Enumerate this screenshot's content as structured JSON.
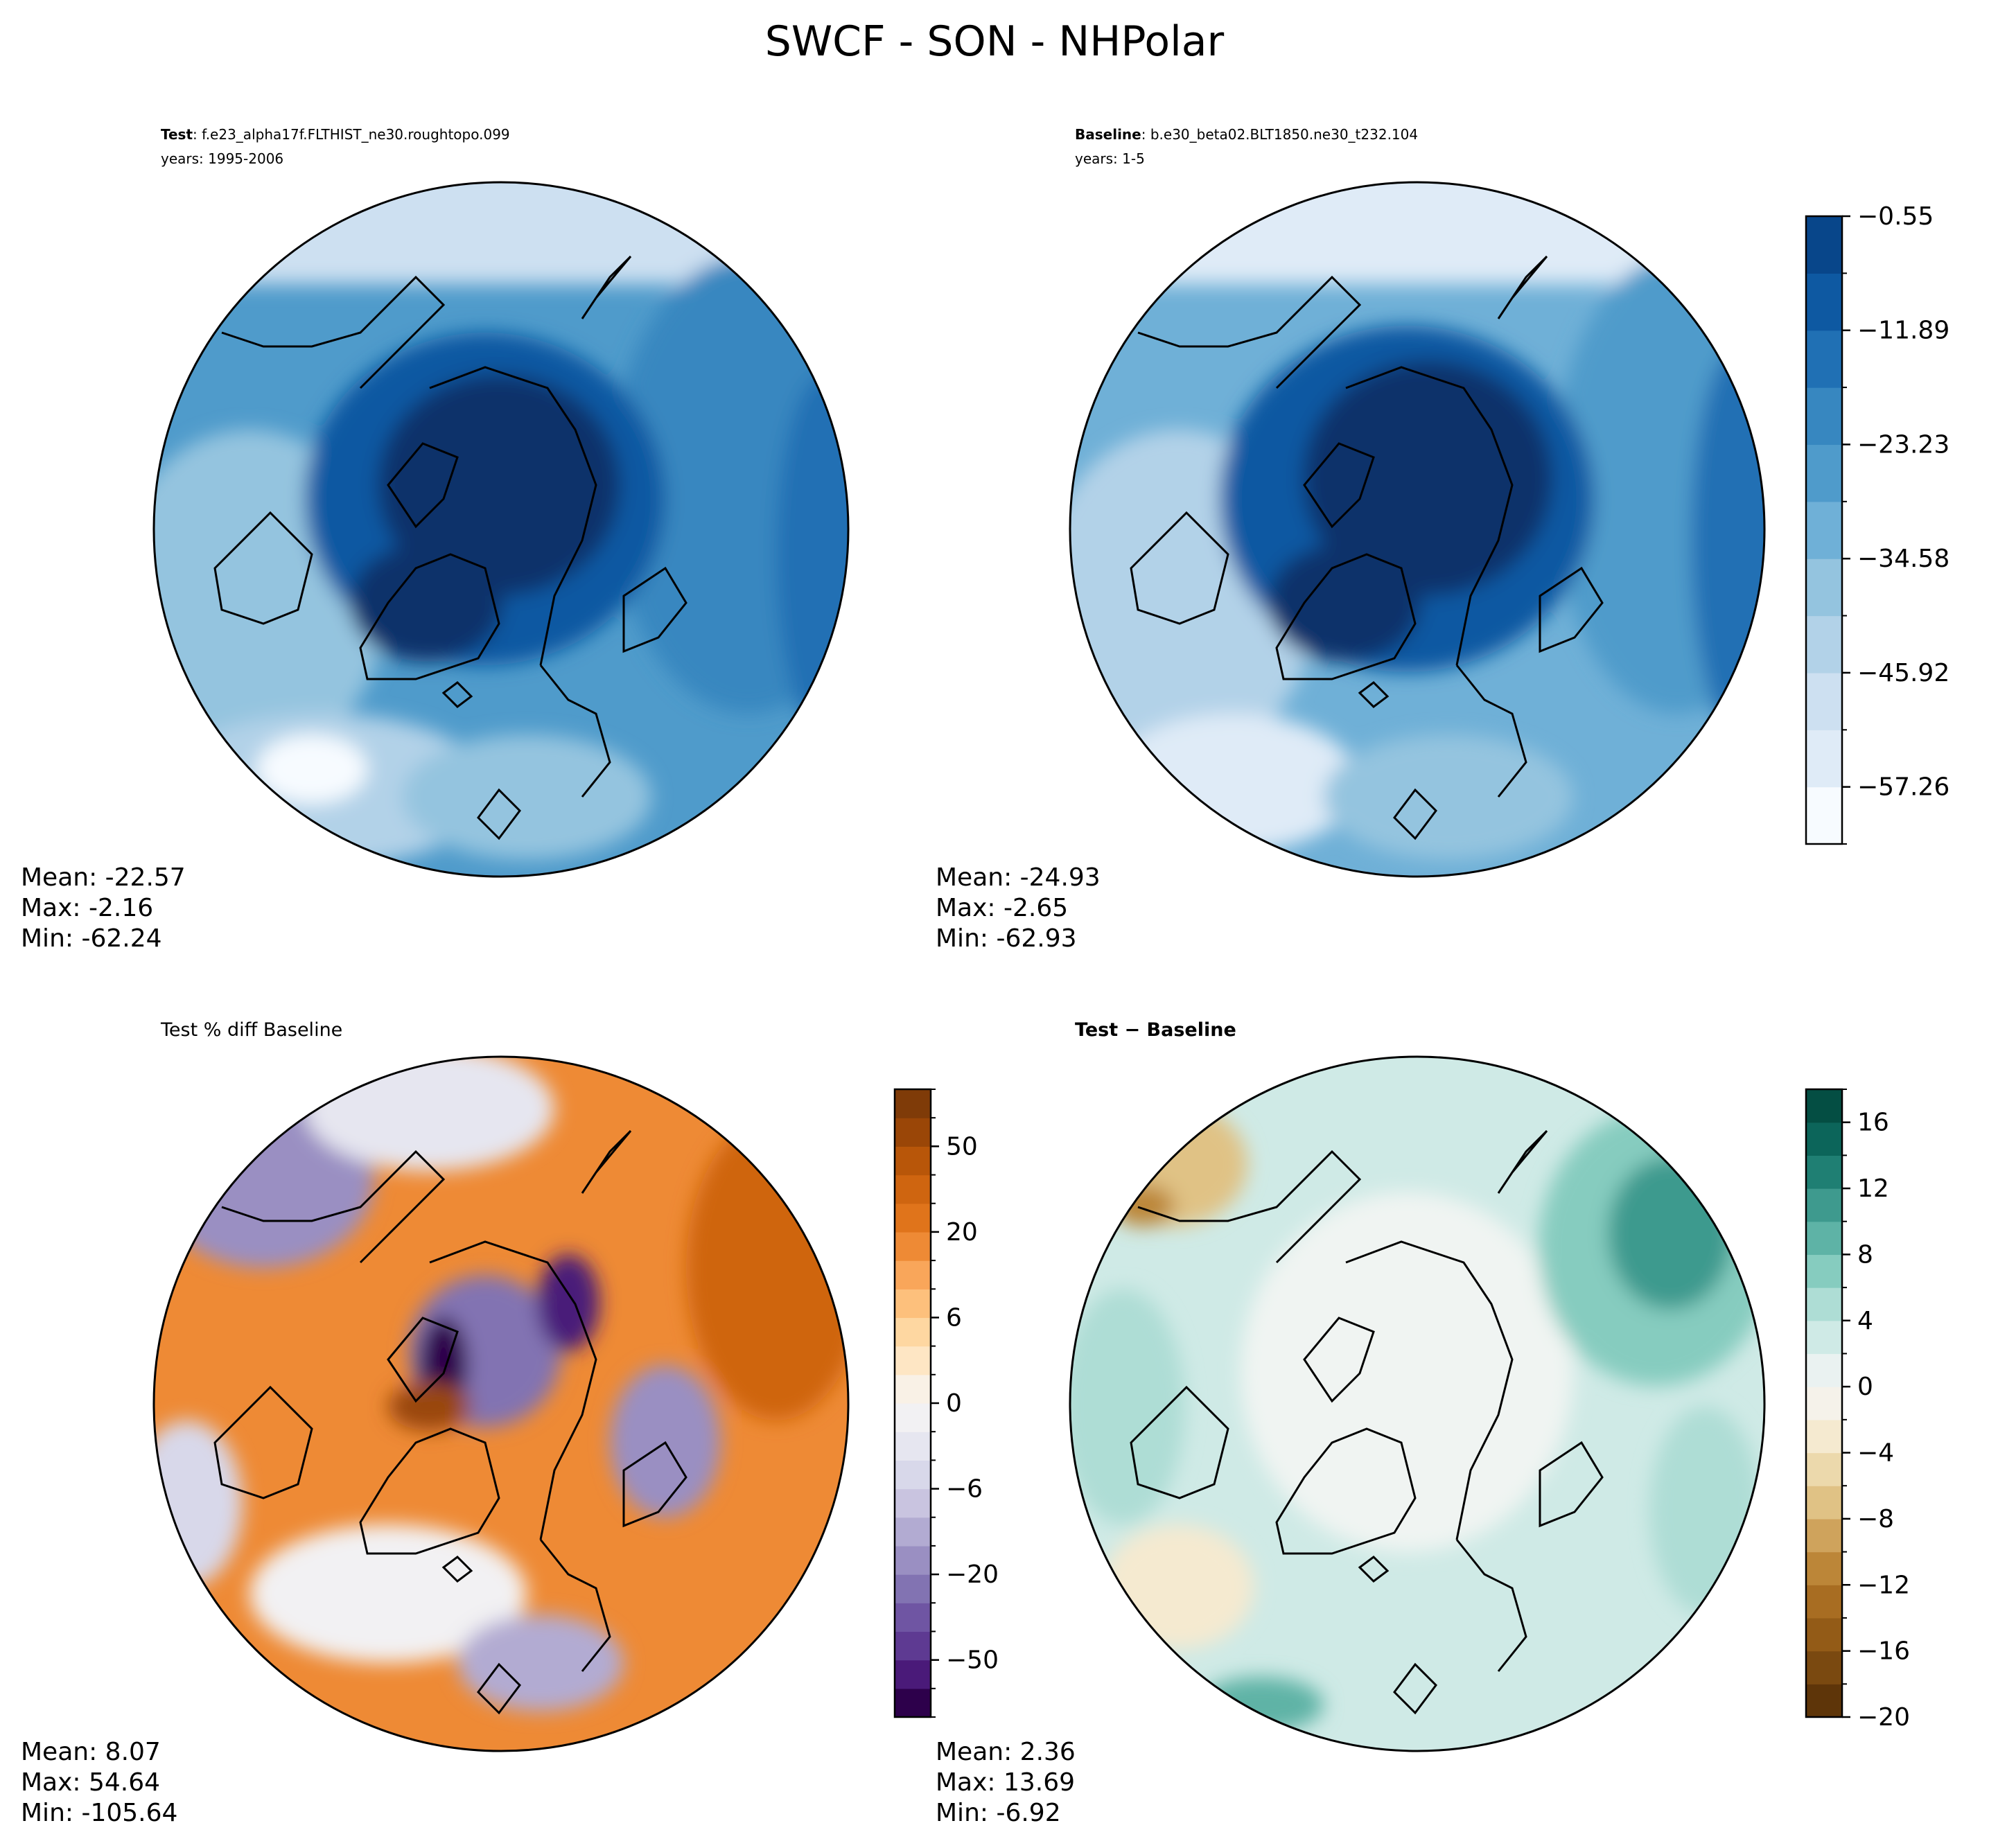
{
  "figure": {
    "title": "SWCF - SON - NHPolar"
  },
  "chart_data": [
    {
      "type": "heatmap",
      "projection": "north-polar-stereographic",
      "panel": "test",
      "label_bold": "Test",
      "label_text": ": f.e23_alpha17f.FLTHIST_ne30.roughtopo.099",
      "years": "years: 1995-2006",
      "stats": {
        "mean": "Mean: -22.57",
        "max": "Max: -2.16",
        "min": "Min: -62.24"
      },
      "colormap": "Blues_r",
      "colorbar": null
    },
    {
      "type": "heatmap",
      "projection": "north-polar-stereographic",
      "panel": "baseline",
      "label_bold": "Baseline",
      "label_text": ": b.e30_beta02.BLT1850.ne30_t232.104",
      "years": "years: 1-5",
      "stats": {
        "mean": "Mean: -24.93",
        "max": "Max: -2.65",
        "min": "Min: -62.93"
      },
      "colormap": "Blues_r",
      "colorbar": {
        "levels": [
          -62.93,
          -57.26,
          -51.59,
          -45.92,
          -40.25,
          -34.58,
          -28.91,
          -23.23,
          -17.56,
          -11.89,
          -6.22,
          -0.55
        ],
        "tick_values": [
          -57.26,
          -45.92,
          -34.58,
          -23.23,
          -11.89,
          -0.55
        ],
        "tick_labels": [
          "−57.26",
          "−45.92",
          "−34.58",
          "−23.23",
          "−11.89",
          "−0.55"
        ],
        "colors": [
          "#f7fbff",
          "#dfebf7",
          "#cde0f1",
          "#b2d2e8",
          "#94c4df",
          "#6fb0d7",
          "#4f9bcb",
          "#3787c0",
          "#2070b4",
          "#0e59a2",
          "#08468a",
          "#08306b"
        ]
      }
    },
    {
      "type": "heatmap",
      "projection": "north-polar-stereographic",
      "panel": "percent-diff",
      "label_text": "Test % diff Baseline",
      "stats": {
        "mean": "Mean:  8.07",
        "max": "Max: 54.64",
        "min": "Min: -105.64"
      },
      "colormap": "PuOr_r",
      "colorbar": {
        "levels": [
          -100,
          -75,
          -50,
          -40,
          -30,
          -20,
          -15,
          -10,
          -6,
          -4,
          -2,
          0,
          2,
          4,
          6,
          10,
          15,
          20,
          30,
          40,
          50,
          75,
          100
        ],
        "tick_values": [
          -50,
          -20,
          -6,
          0,
          6,
          20,
          50
        ],
        "tick_labels": [
          "−50",
          "−20",
          "−6",
          "0",
          "6",
          "20",
          "50"
        ],
        "colors": [
          "#2d004b",
          "#4a1a79",
          "#5e3a92",
          "#6f55a3",
          "#8273b2",
          "#9a8fc2",
          "#b2abd2",
          "#c9c4e0",
          "#d8d8ea",
          "#e6e6f0",
          "#f2f1f3",
          "#f9f1e6",
          "#fee6c4",
          "#fed7a1",
          "#fdc07c",
          "#f9a65a",
          "#ee8a35",
          "#e0741b",
          "#cf6510",
          "#b85609",
          "#9a4607",
          "#7f3b08"
        ]
      }
    },
    {
      "type": "heatmap",
      "projection": "north-polar-stereographic",
      "panel": "difference",
      "label_bold": "Test − Baseline",
      "stats": {
        "mean": "Mean:  2.36",
        "max": "Max: 13.69",
        "min": "Min: -6.92"
      },
      "colormap": "BrBG",
      "colorbar": {
        "levels": [
          -20,
          -18,
          -16,
          -14,
          -12,
          -10,
          -8,
          -6,
          -4,
          -2,
          0,
          2,
          4,
          6,
          8,
          10,
          12,
          14,
          16,
          18
        ],
        "tick_values": [
          -20,
          -16,
          -12,
          -8,
          -4,
          0,
          4,
          8,
          12,
          16
        ],
        "tick_labels": [
          "−20",
          "−16",
          "−12",
          "−8",
          "−4",
          "0",
          "4",
          "8",
          "12",
          "16"
        ],
        "colors": [
          "#5e3509",
          "#7a4910",
          "#935b17",
          "#a86d22",
          "#bc8638",
          "#cfa35c",
          "#e0c285",
          "#ecd9ac",
          "#f5ead0",
          "#f5f2ea",
          "#eaf2f1",
          "#cfeae6",
          "#aeddd5",
          "#86ccbf",
          "#5eb3a6",
          "#3e9a8e",
          "#1f7f73",
          "#0c655a",
          "#044e43"
        ]
      }
    }
  ]
}
